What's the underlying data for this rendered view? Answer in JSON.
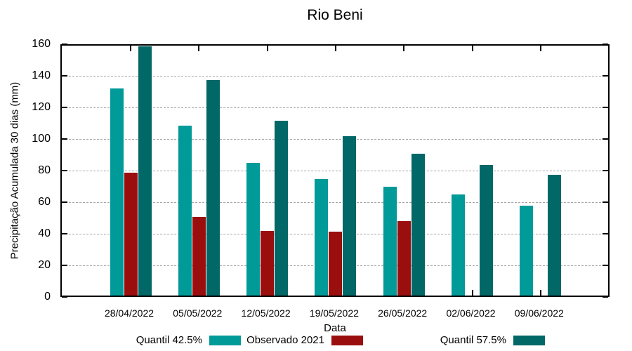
{
  "chart_data": {
    "type": "bar",
    "title": "Rio Beni",
    "xlabel": "Data",
    "ylabel": "Precipitação Acumulada 30 dias (mm)",
    "ylim": [
      0,
      160
    ],
    "ytick_step": 20,
    "grid": true,
    "legend_position": "bottom",
    "categories": [
      "28/04/2022",
      "05/05/2022",
      "12/05/2022",
      "19/05/2022",
      "26/05/2022",
      "02/06/2022",
      "09/06/2022"
    ],
    "series": [
      {
        "name": "Quantil 42.5%",
        "color": "#009a99",
        "values": [
          131,
          107.5,
          84,
          74,
          69,
          64,
          57
        ]
      },
      {
        "name": "Observado 2021",
        "color": "#9a0e0e",
        "values": [
          78,
          50,
          41,
          40.5,
          47,
          null,
          null
        ]
      },
      {
        "name": "Quantil 57.5%",
        "color": "#016767",
        "values": [
          158,
          136.5,
          110.5,
          101,
          90,
          82.5,
          76.5
        ]
      }
    ],
    "colors": {
      "border": "#000000",
      "gridline": "#a6a6a6",
      "background": "#ffffff"
    }
  }
}
